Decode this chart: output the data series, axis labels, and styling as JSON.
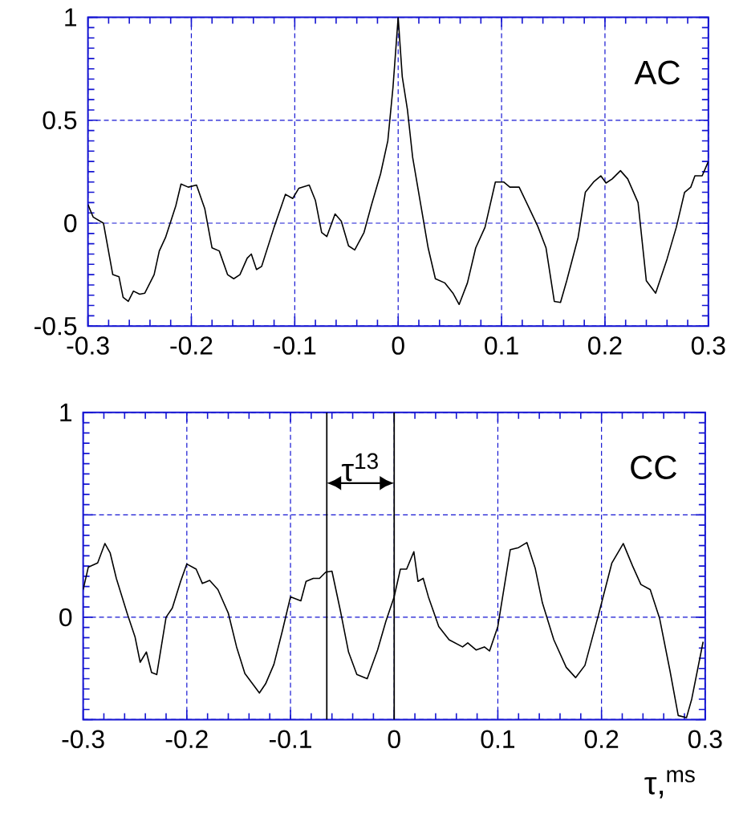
{
  "chart_data": [
    {
      "type": "line",
      "title": "AC",
      "xlim": [
        -0.3,
        0.3
      ],
      "ylim": [
        -0.5,
        1
      ],
      "xticks": [
        -0.3,
        -0.2,
        -0.1,
        0,
        0.1,
        0.2,
        0.3
      ],
      "yticks": [
        -0.5,
        0,
        0.5,
        1
      ],
      "grid": true,
      "series": [
        {
          "color": "#000000",
          "x": [
            -0.3,
            -0.295,
            -0.285,
            -0.276,
            -0.27,
            -0.266,
            -0.261,
            -0.256,
            -0.25,
            -0.245,
            -0.236,
            -0.231,
            -0.225,
            -0.215,
            -0.21,
            -0.203,
            -0.195,
            -0.187,
            -0.18,
            -0.173,
            -0.165,
            -0.159,
            -0.153,
            -0.146,
            -0.142,
            -0.137,
            -0.132,
            -0.12,
            -0.109,
            -0.102,
            -0.096,
            -0.086,
            -0.08,
            -0.074,
            -0.069,
            -0.061,
            -0.055,
            -0.048,
            -0.042,
            -0.033,
            -0.026,
            -0.017,
            -0.01,
            -0.005,
            0.0,
            0.004,
            0.009,
            0.014,
            0.022,
            0.029,
            0.036,
            0.045,
            0.053,
            0.059,
            0.067,
            0.075,
            0.084,
            0.094,
            0.102,
            0.108,
            0.117,
            0.127,
            0.135,
            0.143,
            0.151,
            0.157,
            0.163,
            0.174,
            0.181,
            0.189,
            0.196,
            0.201,
            0.207,
            0.215,
            0.222,
            0.232,
            0.24,
            0.249,
            0.26,
            0.269,
            0.277,
            0.283,
            0.287,
            0.294,
            0.3
          ],
          "values": [
            0.09,
            0.03,
            0.0,
            -0.25,
            -0.26,
            -0.36,
            -0.38,
            -0.33,
            -0.345,
            -0.34,
            -0.25,
            -0.135,
            -0.07,
            0.085,
            0.19,
            0.175,
            0.185,
            0.07,
            -0.12,
            -0.135,
            -0.25,
            -0.27,
            -0.25,
            -0.17,
            -0.15,
            -0.225,
            -0.21,
            -0.02,
            0.14,
            0.12,
            0.17,
            0.185,
            0.11,
            -0.045,
            -0.065,
            0.045,
            0.01,
            -0.11,
            -0.13,
            -0.045,
            0.085,
            0.24,
            0.4,
            0.66,
            1.0,
            0.71,
            0.55,
            0.32,
            0.085,
            -0.12,
            -0.27,
            -0.29,
            -0.34,
            -0.395,
            -0.29,
            -0.12,
            -0.02,
            0.2,
            0.2,
            0.175,
            0.175,
            0.07,
            -0.015,
            -0.12,
            -0.38,
            -0.385,
            -0.28,
            -0.07,
            0.15,
            0.2,
            0.23,
            0.195,
            0.215,
            0.255,
            0.215,
            0.1,
            -0.28,
            -0.34,
            -0.175,
            -0.02,
            0.15,
            0.175,
            0.23,
            0.23,
            0.3
          ]
        }
      ]
    },
    {
      "type": "line",
      "title": "CC",
      "xlabel": "τ,$^{ms}$",
      "xlim": [
        -0.3,
        0.3
      ],
      "ylim": [
        -0.5,
        1
      ],
      "xticks": [
        -0.3,
        -0.2,
        -0.1,
        0,
        0.1,
        0.2,
        0.3
      ],
      "yticks": [
        {
          "value": -0.5,
          "label": null
        },
        0,
        {
          "value": 0.5,
          "label": null
        },
        1
      ],
      "grid": true,
      "ref_lines": [
        {
          "axis": "x",
          "value": -0.065,
          "color": "#000000"
        },
        {
          "axis": "x",
          "value": 0,
          "color": "#000000"
        }
      ],
      "annotations": [
        "τ$^{13}$"
      ],
      "series": [
        {
          "color": "#000000",
          "x": [
            -0.3,
            -0.295,
            -0.286,
            -0.279,
            -0.274,
            -0.268,
            -0.257,
            -0.25,
            -0.245,
            -0.239,
            -0.234,
            -0.229,
            -0.22,
            -0.214,
            -0.206,
            -0.2,
            -0.191,
            -0.185,
            -0.178,
            -0.17,
            -0.16,
            -0.152,
            -0.144,
            -0.13,
            -0.124,
            -0.116,
            -0.108,
            -0.1,
            -0.09,
            -0.085,
            -0.078,
            -0.072,
            -0.066,
            -0.06,
            -0.052,
            -0.044,
            -0.036,
            -0.026,
            -0.016,
            -0.008,
            0.0,
            0.006,
            0.012,
            0.019,
            0.023,
            0.028,
            0.033,
            0.043,
            0.053,
            0.066,
            0.071,
            0.079,
            0.087,
            0.092,
            0.1,
            0.112,
            0.12,
            0.128,
            0.136,
            0.143,
            0.154,
            0.166,
            0.175,
            0.184,
            0.197,
            0.21,
            0.221,
            0.23,
            0.238,
            0.247,
            0.256,
            0.266,
            0.274,
            0.282,
            0.287,
            0.298
          ],
          "values": [
            0.135,
            0.245,
            0.265,
            0.36,
            0.315,
            0.19,
            0.01,
            -0.095,
            -0.22,
            -0.17,
            -0.27,
            -0.28,
            0.0,
            0.045,
            0.175,
            0.26,
            0.235,
            0.165,
            0.18,
            0.135,
            0.02,
            -0.145,
            -0.275,
            -0.37,
            -0.325,
            -0.23,
            -0.07,
            0.1,
            0.08,
            0.175,
            0.19,
            0.19,
            0.22,
            0.225,
            0.035,
            -0.17,
            -0.28,
            -0.3,
            -0.16,
            -0.02,
            0.1,
            0.235,
            0.235,
            0.32,
            0.175,
            0.19,
            0.1,
            -0.045,
            -0.11,
            -0.145,
            -0.125,
            -0.16,
            -0.145,
            -0.165,
            -0.045,
            0.33,
            0.34,
            0.365,
            0.24,
            0.07,
            -0.11,
            -0.245,
            -0.295,
            -0.235,
            0.01,
            0.265,
            0.36,
            0.25,
            0.16,
            0.135,
            -0.005,
            -0.26,
            -0.48,
            -0.49,
            -0.4,
            -0.12
          ]
        }
      ]
    }
  ]
}
